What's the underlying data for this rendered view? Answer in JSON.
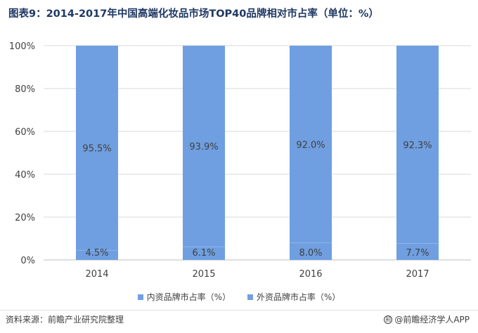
{
  "header": {
    "title": "图表9：2014-2017年中国高端化妆品市场TOP40品牌相对市占率（单位：%）"
  },
  "footer": {
    "source": "资料来源：前瞻产业研究院整理",
    "brand": "@前瞻经济学人APP"
  },
  "colors": {
    "domestic": "#6f9fe0",
    "foreign": "#6f9fe0",
    "grid": "#d9d9d9",
    "axis": "#bfbfbf"
  },
  "chart_data": {
    "type": "bar",
    "stacked": true,
    "categories": [
      "2014",
      "2015",
      "2016",
      "2017"
    ],
    "series": [
      {
        "name": "内资品牌市占率（%）",
        "values": [
          4.5,
          6.1,
          8.0,
          7.7
        ],
        "labels": [
          "4.5%",
          "6.1%",
          "8.0%",
          "7.7%"
        ]
      },
      {
        "name": "外资品牌市占率（%）",
        "values": [
          95.5,
          93.9,
          92.0,
          92.3
        ],
        "labels": [
          "95.5%",
          "93.9%",
          "92.0%",
          "92.3%"
        ]
      }
    ],
    "ylim": [
      0,
      100
    ],
    "yticks": [
      "0%",
      "20%",
      "40%",
      "60%",
      "80%",
      "100%"
    ],
    "grid": true,
    "legend_position": "bottom"
  }
}
